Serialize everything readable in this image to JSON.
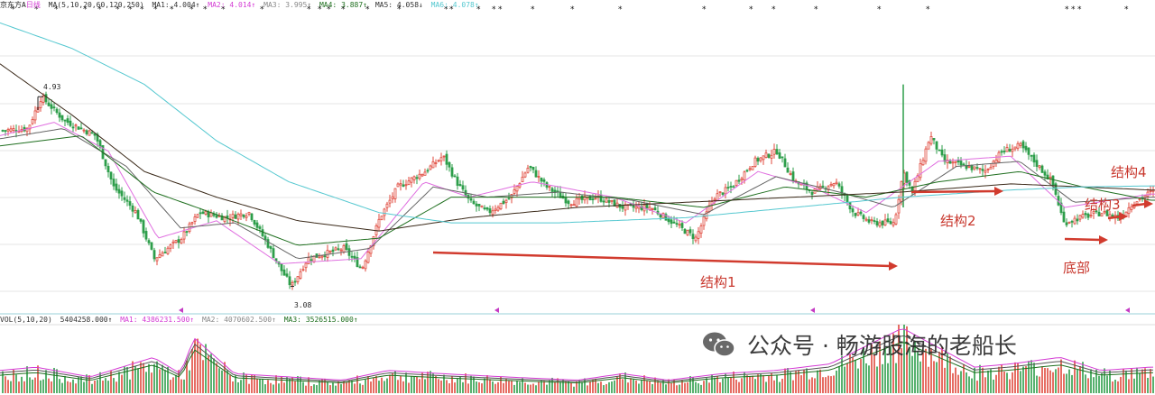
{
  "header": {
    "title": "京东方A",
    "period": "日线",
    "ma_params": "MA(5,10,20,60,120,250)",
    "ma_values": [
      {
        "label": "MA1:",
        "value": "4.004",
        "arrow": "↑",
        "color": "#222222"
      },
      {
        "label": "MA2:",
        "value": "4.014",
        "arrow": "↑",
        "color": "#d43bd4"
      },
      {
        "label": "MA3:",
        "value": "3.995",
        "arrow": "↑",
        "color": "#888888"
      },
      {
        "label": "MA4:",
        "value": "3.887",
        "arrow": "↑",
        "color": "#1f6f1f"
      },
      {
        "label": "MA5:",
        "value": "4.058",
        "arrow": "↓",
        "color": "#222222"
      },
      {
        "label": "MA6:",
        "value": "4.078",
        "arrow": "↑",
        "color": "#55c8d0"
      }
    ]
  },
  "volume_header": {
    "params": "VOL(5,10,20)",
    "value": "5404258.000",
    "arrow": "↑",
    "ma_values": [
      {
        "label": "MA1:",
        "value": "4386231.500",
        "arrow": "↑",
        "color": "#d43bd4"
      },
      {
        "label": "MA2:",
        "value": "4070602.500",
        "arrow": "↑",
        "color": "#888888"
      },
      {
        "label": "MA3:",
        "value": "3526515.000",
        "arrow": "↑",
        "color": "#1f6f1f"
      }
    ]
  },
  "chart_data": {
    "type": "candlestick",
    "price_labels": {
      "high": "4.93",
      "low": "3.08"
    },
    "price_points": [
      [
        0,
        4.6
      ],
      [
        30,
        4.62
      ],
      [
        45,
        4.93
      ],
      [
        70,
        4.7
      ],
      [
        105,
        4.55
      ],
      [
        125,
        4.05
      ],
      [
        150,
        3.8
      ],
      [
        170,
        3.35
      ],
      [
        185,
        3.45
      ],
      [
        200,
        3.55
      ],
      [
        220,
        3.8
      ],
      [
        250,
        3.75
      ],
      [
        275,
        3.8
      ],
      [
        295,
        3.5
      ],
      [
        310,
        3.25
      ],
      [
        322,
        3.08
      ],
      [
        340,
        3.35
      ],
      [
        360,
        3.4
      ],
      [
        380,
        3.45
      ],
      [
        400,
        3.25
      ],
      [
        420,
        3.75
      ],
      [
        440,
        4.05
      ],
      [
        470,
        4.2
      ],
      [
        490,
        4.35
      ],
      [
        505,
        4.1
      ],
      [
        520,
        3.9
      ],
      [
        540,
        3.8
      ],
      [
        565,
        3.95
      ],
      [
        585,
        4.25
      ],
      [
        605,
        4.05
      ],
      [
        630,
        3.9
      ],
      [
        660,
        3.95
      ],
      [
        690,
        3.85
      ],
      [
        720,
        3.85
      ],
      [
        745,
        3.7
      ],
      [
        770,
        3.55
      ],
      [
        790,
        3.95
      ],
      [
        810,
        4.05
      ],
      [
        835,
        4.3
      ],
      [
        860,
        4.4
      ],
      [
        880,
        4.1
      ],
      [
        900,
        4.0
      ],
      [
        925,
        4.1
      ],
      [
        945,
        3.8
      ],
      [
        965,
        3.7
      ],
      [
        990,
        3.7
      ],
      [
        1000,
        4.2
      ],
      [
        1010,
        4.0
      ],
      [
        1030,
        4.55
      ],
      [
        1045,
        4.3
      ],
      [
        1070,
        4.25
      ],
      [
        1090,
        4.2
      ],
      [
        1110,
        4.4
      ],
      [
        1130,
        4.45
      ],
      [
        1150,
        4.25
      ],
      [
        1165,
        4.1
      ],
      [
        1178,
        3.7
      ],
      [
        1195,
        3.75
      ],
      [
        1220,
        3.8
      ],
      [
        1240,
        3.75
      ],
      [
        1255,
        3.9
      ],
      [
        1275,
        4.0
      ]
    ],
    "ma_series": [
      {
        "color": "#e06fe0",
        "points": [
          [
            0,
            4.55
          ],
          [
            60,
            4.68
          ],
          [
            120,
            4.4
          ],
          [
            175,
            3.55
          ],
          [
            240,
            3.72
          ],
          [
            310,
            3.3
          ],
          [
            400,
            3.35
          ],
          [
            470,
            4.1
          ],
          [
            520,
            3.95
          ],
          [
            590,
            4.1
          ],
          [
            680,
            3.95
          ],
          [
            760,
            3.7
          ],
          [
            840,
            4.2
          ],
          [
            900,
            4.05
          ],
          [
            960,
            3.8
          ],
          [
            1040,
            4.3
          ],
          [
            1120,
            4.35
          ],
          [
            1180,
            3.85
          ],
          [
            1275,
            3.98
          ]
        ]
      },
      {
        "color": "#666666",
        "points": [
          [
            0,
            4.52
          ],
          [
            70,
            4.62
          ],
          [
            140,
            4.25
          ],
          [
            200,
            3.65
          ],
          [
            260,
            3.7
          ],
          [
            330,
            3.35
          ],
          [
            410,
            3.45
          ],
          [
            480,
            4.05
          ],
          [
            540,
            3.95
          ],
          [
            620,
            4.0
          ],
          [
            700,
            3.92
          ],
          [
            780,
            3.78
          ],
          [
            860,
            4.15
          ],
          [
            930,
            4.0
          ],
          [
            990,
            3.85
          ],
          [
            1060,
            4.25
          ],
          [
            1130,
            4.3
          ],
          [
            1190,
            3.9
          ],
          [
            1275,
            3.95
          ]
        ]
      },
      {
        "color": "#1f6f1f",
        "points": [
          [
            0,
            4.45
          ],
          [
            90,
            4.55
          ],
          [
            170,
            4.0
          ],
          [
            250,
            3.75
          ],
          [
            330,
            3.48
          ],
          [
            420,
            3.55
          ],
          [
            500,
            3.95
          ],
          [
            580,
            3.95
          ],
          [
            680,
            3.95
          ],
          [
            780,
            3.85
          ],
          [
            870,
            4.05
          ],
          [
            960,
            3.95
          ],
          [
            1040,
            4.1
          ],
          [
            1130,
            4.2
          ],
          [
            1200,
            4.05
          ],
          [
            1275,
            3.92
          ]
        ]
      },
      {
        "color": "#3b2a1a",
        "points": [
          [
            0,
            5.25
          ],
          [
            80,
            4.75
          ],
          [
            160,
            4.2
          ],
          [
            240,
            3.95
          ],
          [
            330,
            3.72
          ],
          [
            420,
            3.62
          ],
          [
            520,
            3.75
          ],
          [
            640,
            3.85
          ],
          [
            760,
            3.9
          ],
          [
            880,
            3.95
          ],
          [
            1000,
            4.0
          ],
          [
            1120,
            4.08
          ],
          [
            1200,
            4.05
          ],
          [
            1275,
            4.02
          ]
        ]
      },
      {
        "color": "#55c8d0",
        "points": [
          [
            0,
            5.65
          ],
          [
            80,
            5.4
          ],
          [
            160,
            5.05
          ],
          [
            240,
            4.5
          ],
          [
            320,
            4.1
          ],
          [
            420,
            3.8
          ],
          [
            500,
            3.7
          ],
          [
            620,
            3.7
          ],
          [
            760,
            3.75
          ],
          [
            880,
            3.85
          ],
          [
            1000,
            3.95
          ],
          [
            1120,
            4.02
          ],
          [
            1200,
            4.05
          ],
          [
            1275,
            4.06
          ]
        ]
      }
    ],
    "volume_points": [
      [
        0,
        0.35
      ],
      [
        40,
        0.4
      ],
      [
        100,
        0.25
      ],
      [
        170,
        0.55
      ],
      [
        200,
        0.3
      ],
      [
        215,
        0.85
      ],
      [
        260,
        0.3
      ],
      [
        320,
        0.25
      ],
      [
        380,
        0.2
      ],
      [
        430,
        0.35
      ],
      [
        490,
        0.3
      ],
      [
        560,
        0.25
      ],
      [
        640,
        0.2
      ],
      [
        690,
        0.3
      ],
      [
        740,
        0.2
      ],
      [
        800,
        0.3
      ],
      [
        860,
        0.35
      ],
      [
        920,
        0.45
      ],
      [
        1000,
        1.0
      ],
      [
        1040,
        0.7
      ],
      [
        1080,
        0.4
      ],
      [
        1120,
        0.45
      ],
      [
        1175,
        0.55
      ],
      [
        1220,
        0.35
      ],
      [
        1275,
        0.4
      ]
    ]
  },
  "annotations": [
    {
      "text": "结构1"
    },
    {
      "text": "结构2"
    },
    {
      "text": "结构3"
    },
    {
      "text": "结构4"
    },
    {
      "text": "底部"
    }
  ],
  "watermark": {
    "text": "公众号 · 畅游股海的老船长",
    "icon": "wechat-icon"
  }
}
